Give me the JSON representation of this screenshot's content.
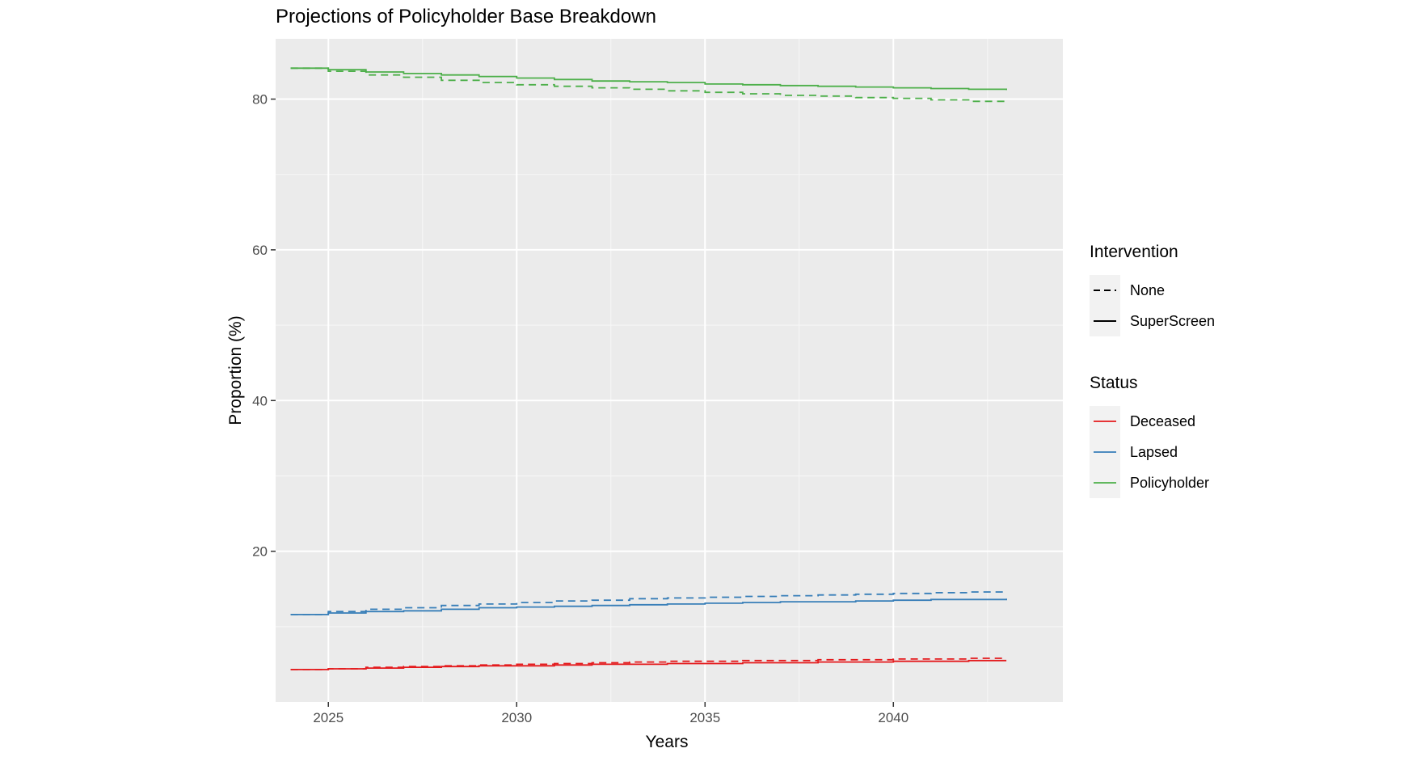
{
  "chart_data": {
    "type": "line",
    "title": "Projections of Policyholder Base Breakdown",
    "xlabel": "Years",
    "ylabel": "Proportion (%)",
    "xlim": [
      2023.6,
      2044.5
    ],
    "ylim": [
      0,
      88
    ],
    "x_ticks": [
      2025,
      2030,
      2035,
      2040
    ],
    "y_ticks": [
      20,
      40,
      60,
      80
    ],
    "grid": true,
    "legend_position": "right",
    "step": true,
    "legends": [
      {
        "title": "Intervention",
        "entries": [
          {
            "label": "None",
            "linetype": "dashed"
          },
          {
            "label": "SuperScreen",
            "linetype": "solid"
          }
        ]
      },
      {
        "title": "Status",
        "entries": [
          {
            "label": "Deceased",
            "color": "#E41A1C"
          },
          {
            "label": "Lapsed",
            "color": "#377EB8"
          },
          {
            "label": "Policyholder",
            "color": "#4DAF4A"
          }
        ]
      }
    ],
    "x": [
      2024,
      2025,
      2026,
      2027,
      2028,
      2029,
      2030,
      2031,
      2032,
      2033,
      2034,
      2035,
      2036,
      2037,
      2038,
      2039,
      2040,
      2041,
      2042,
      2043
    ],
    "series": [
      {
        "name": "Policyholder",
        "status": "Policyholder",
        "intervention": "SuperScreen",
        "color": "#4DAF4A",
        "linetype": "solid",
        "values": [
          84.1,
          83.9,
          83.6,
          83.4,
          83.2,
          83.0,
          82.8,
          82.6,
          82.4,
          82.3,
          82.2,
          82.0,
          81.9,
          81.8,
          81.7,
          81.6,
          81.5,
          81.4,
          81.3,
          81.2
        ]
      },
      {
        "name": "Policyholder",
        "status": "Policyholder",
        "intervention": "None",
        "color": "#4DAF4A",
        "linetype": "dashed",
        "values": [
          84.1,
          83.7,
          83.2,
          82.9,
          82.5,
          82.2,
          81.9,
          81.7,
          81.5,
          81.3,
          81.1,
          80.9,
          80.7,
          80.5,
          80.4,
          80.2,
          80.1,
          79.9,
          79.7,
          79.6
        ]
      },
      {
        "name": "Lapsed",
        "status": "Lapsed",
        "intervention": "SuperScreen",
        "color": "#377EB8",
        "linetype": "solid",
        "values": [
          11.6,
          11.8,
          12.0,
          12.1,
          12.3,
          12.5,
          12.6,
          12.7,
          12.8,
          12.9,
          13.0,
          13.1,
          13.2,
          13.3,
          13.3,
          13.4,
          13.5,
          13.6,
          13.6,
          13.7
        ]
      },
      {
        "name": "Lapsed",
        "status": "Lapsed",
        "intervention": "None",
        "color": "#377EB8",
        "linetype": "dashed",
        "values": [
          11.6,
          12.0,
          12.3,
          12.5,
          12.8,
          13.0,
          13.2,
          13.4,
          13.5,
          13.7,
          13.8,
          13.9,
          14.0,
          14.1,
          14.2,
          14.3,
          14.4,
          14.5,
          14.6,
          14.7
        ]
      },
      {
        "name": "Deceased",
        "status": "Deceased",
        "intervention": "SuperScreen",
        "color": "#E41A1C",
        "linetype": "solid",
        "values": [
          4.3,
          4.4,
          4.5,
          4.6,
          4.7,
          4.8,
          4.8,
          4.9,
          5.0,
          5.0,
          5.1,
          5.1,
          5.2,
          5.2,
          5.3,
          5.3,
          5.4,
          5.4,
          5.5,
          5.5
        ]
      },
      {
        "name": "Deceased",
        "status": "Deceased",
        "intervention": "None",
        "color": "#E41A1C",
        "linetype": "dashed",
        "values": [
          4.3,
          4.4,
          4.6,
          4.7,
          4.8,
          4.9,
          5.0,
          5.1,
          5.2,
          5.3,
          5.4,
          5.4,
          5.5,
          5.5,
          5.6,
          5.6,
          5.7,
          5.7,
          5.8,
          5.8
        ]
      }
    ]
  }
}
